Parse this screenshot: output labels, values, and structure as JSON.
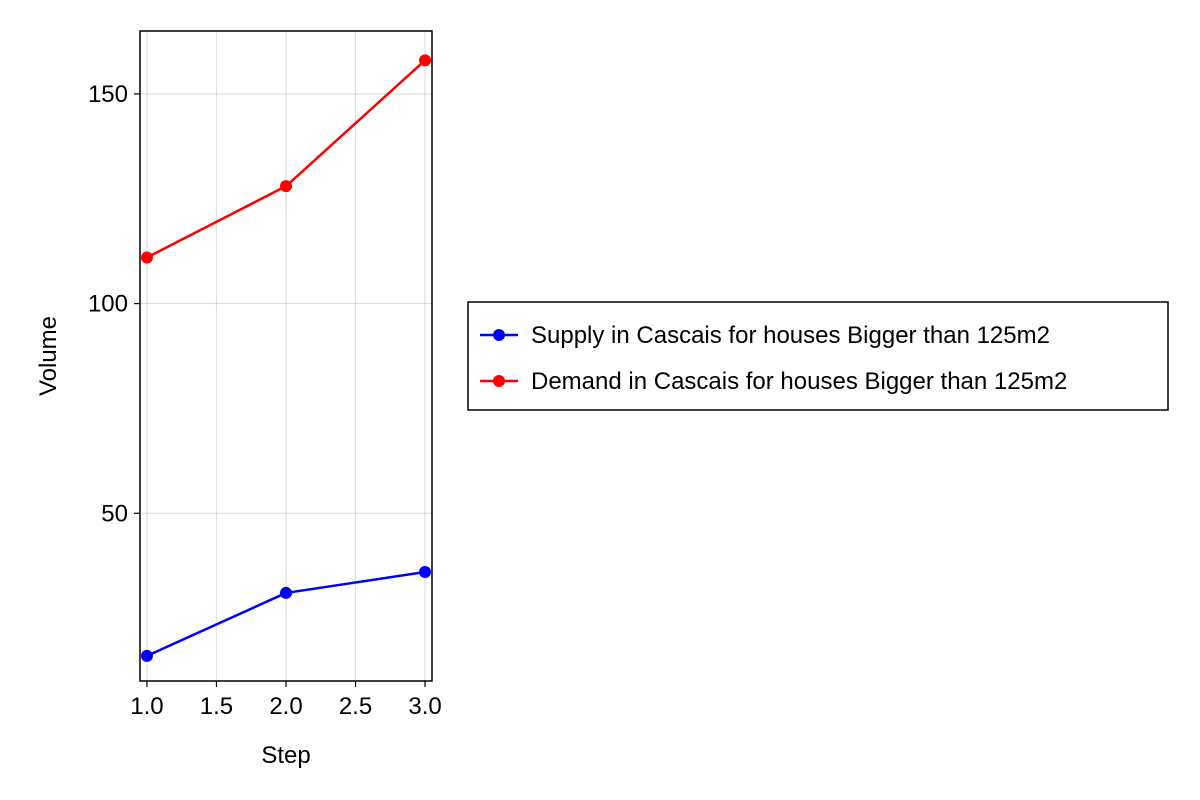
{
  "chart_data": {
    "type": "line",
    "title": "",
    "xlabel": "Step",
    "ylabel": "Volume",
    "xlim": [
      0.95,
      3.05
    ],
    "ylim": [
      10,
      165
    ],
    "x_ticks": [
      1.0,
      1.5,
      2.0,
      2.5,
      3.0
    ],
    "x_tick_labels": [
      "1.0",
      "1.5",
      "2.0",
      "2.5",
      "3.0"
    ],
    "y_ticks": [
      50,
      100,
      150
    ],
    "y_tick_labels": [
      "50",
      "100",
      "150"
    ],
    "grid": true,
    "legend_position": "right",
    "x": [
      1,
      2,
      3
    ],
    "series": [
      {
        "name": "Supply in Cascais for houses Bigger than 125m2",
        "color": "#0000ff",
        "values": [
          16,
          31,
          36
        ]
      },
      {
        "name": "Demand in Cascais for houses Bigger than 125m2",
        "color": "#ff0000",
        "values": [
          111,
          128,
          158
        ]
      }
    ]
  }
}
